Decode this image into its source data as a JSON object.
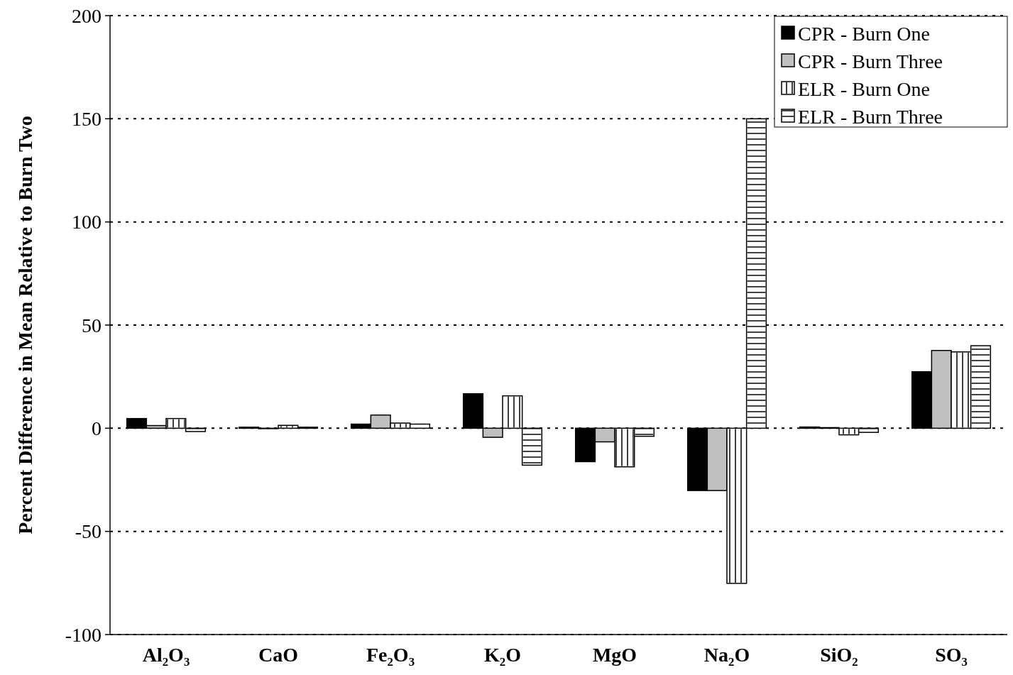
{
  "chart_data": {
    "type": "bar",
    "ylabel": "Percent Difference in Mean Relative to Burn Two",
    "categories": [
      "Al₂O₃",
      "CaO",
      "Fe₂O₃",
      "K₂O",
      "MgO",
      "Na₂O",
      "SiO₂",
      "SO₃"
    ],
    "series": [
      {
        "name": "CPR - Burn One",
        "color": "#000000",
        "values": [
          4.7,
          0.5,
          2,
          16.7,
          -16.2,
          -30.2,
          0.6,
          27.4
        ]
      },
      {
        "name": "CPR - Burn Three",
        "color": "#c0c0c0",
        "values": [
          1.3,
          -0.2,
          6.4,
          -4.4,
          -6.6,
          -30.2,
          0.3,
          37.7
        ]
      },
      {
        "name": "ELR - Burn One",
        "color": "#ffffff",
        "values": [
          4.7,
          1.4,
          2.5,
          15.7,
          -18.7,
          -75.2,
          -3.2,
          37
        ]
      },
      {
        "name": "ELR - Burn Three",
        "color": "#ffffff",
        "values": [
          -1.6,
          0.5,
          2,
          -17.9,
          -3.9,
          150,
          -2,
          40
        ]
      }
    ],
    "ylim": [
      -100,
      200
    ],
    "yticks": [
      -100,
      -50,
      0,
      50,
      100,
      150,
      200
    ],
    "grid": "y",
    "legend": "top right"
  }
}
